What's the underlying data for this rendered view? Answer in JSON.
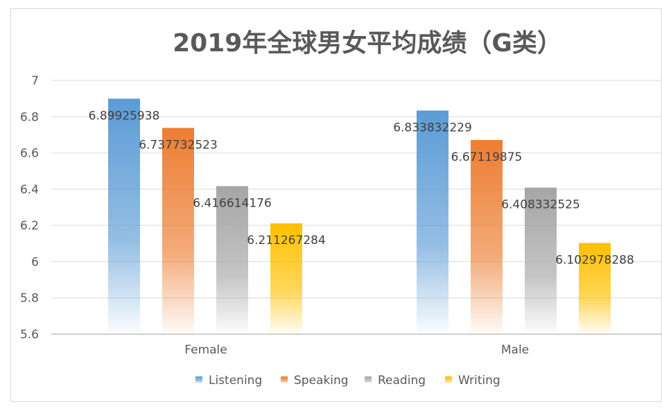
{
  "chart_data": {
    "type": "bar",
    "title": "2019年全球男女平均成绩（G类）",
    "categories": [
      "Female",
      "Male"
    ],
    "series": [
      {
        "name": "Listening",
        "values": [
          6.89925938,
          6.833832229
        ],
        "labels": [
          "6.89925938",
          "6.833832229"
        ],
        "color": "#5b9bd5"
      },
      {
        "name": "Speaking",
        "values": [
          6.737732523,
          6.67119875
        ],
        "labels": [
          "6.737732523",
          "6.67119875"
        ],
        "color": "#ed7d31"
      },
      {
        "name": "Reading",
        "values": [
          6.416614176,
          6.408332525
        ],
        "labels": [
          "6.416614176",
          "6.408332525"
        ],
        "color": "#a5a5a5"
      },
      {
        "name": "Writing",
        "values": [
          6.211267284,
          6.102978288
        ],
        "labels": [
          "6.211267284",
          "6.102978288"
        ],
        "color": "#ffc000"
      }
    ],
    "ylim": [
      5.6,
      7
    ],
    "yticks": [
      "5.6",
      "5.8",
      "6",
      "6.2",
      "6.4",
      "6.6",
      "6.8",
      "7"
    ],
    "grid": true,
    "legend": "bottom",
    "xlabel": "",
    "ylabel": ""
  }
}
